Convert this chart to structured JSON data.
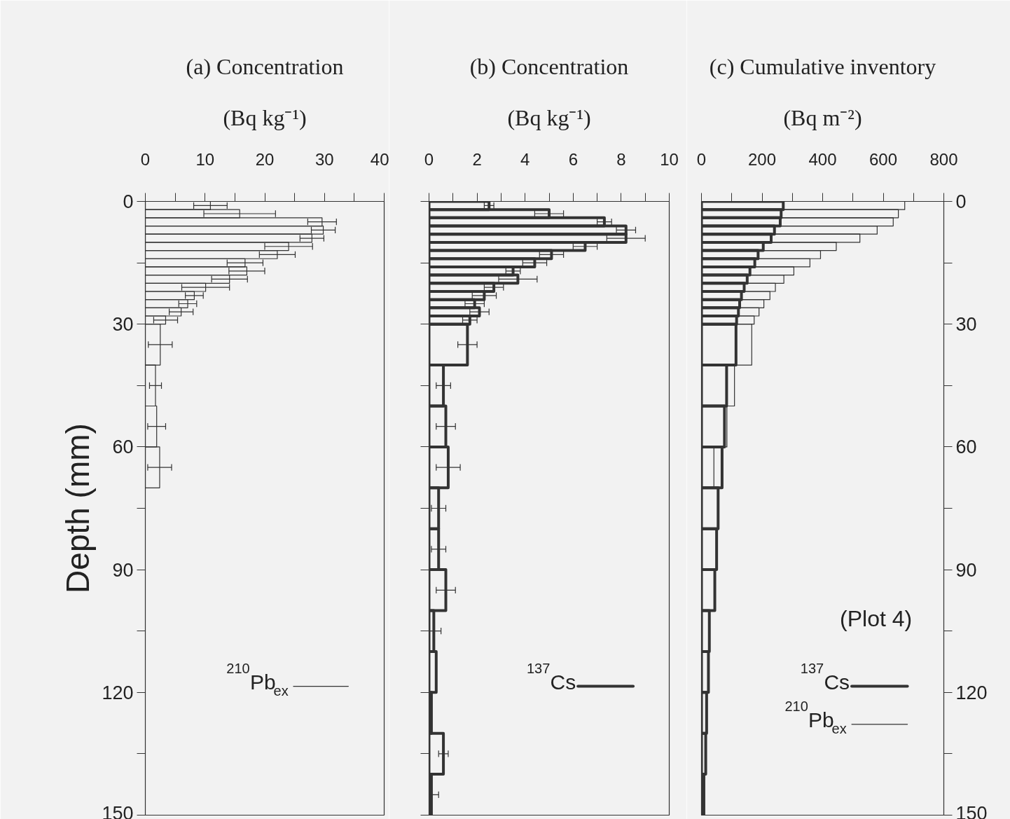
{
  "chart_data": [
    {
      "type": "histogram",
      "orientation": "horizontal",
      "title": "(a) Concentration",
      "subtitle": "(Bq kg⁻¹)",
      "ylabel": "Depth (mm)",
      "bins": [
        0,
        2,
        4,
        6,
        8,
        10,
        12,
        14,
        16,
        18,
        20,
        22,
        24,
        26,
        28,
        30,
        40,
        50,
        60,
        70
      ],
      "series": [
        {
          "name": "$^{210}$Pb$_{ex}$",
          "color": "#333333",
          "values": [
            10.9,
            15.8,
            29.6,
            29.8,
            27.9,
            24.0,
            22.1,
            16.7,
            17.0,
            14.1,
            10.1,
            8.2,
            7.1,
            6.0,
            3.4,
            2.5,
            1.7,
            1.9,
            2.4
          ],
          "errors": [
            2.8,
            6,
            2.4,
            2,
            2,
            4,
            3,
            3,
            3,
            3,
            4,
            1.5,
            1.5,
            2,
            2,
            2,
            1,
            1.5,
            2
          ]
        }
      ],
      "xlim": [
        0,
        40
      ],
      "xticks": [
        0,
        {
          "value": 5,
          "label": null
        },
        10,
        {
          "value": 15,
          "label": null
        },
        20,
        {
          "value": 25,
          "label": null
        },
        30,
        {
          "value": 35,
          "label": null
        },
        40
      ],
      "ylim": [
        150,
        0
      ],
      "yticks": [
        0,
        {
          "value": 15,
          "label": null
        },
        30,
        {
          "value": 45,
          "label": null
        },
        60,
        {
          "value": 75,
          "label": null
        },
        90,
        {
          "value": 105,
          "label": null
        },
        120,
        {
          "value": 135,
          "label": null
        },
        150
      ],
      "grid": false,
      "legend": "bottom right"
    },
    {
      "type": "histogram",
      "orientation": "horizontal",
      "title": "(b) Concentration",
      "subtitle": "(Bq kg⁻¹)",
      "bins": [
        0,
        2,
        4,
        6,
        8,
        10,
        12,
        14,
        16,
        18,
        20,
        22,
        24,
        26,
        28,
        30,
        40,
        50,
        60,
        70,
        80,
        90,
        100,
        110,
        120,
        130,
        140,
        150
      ],
      "series": [
        {
          "name": "$^{137}$Cs",
          "color": "#333333",
          "values": [
            2.5,
            5.0,
            7.3,
            8.2,
            8.2,
            6.5,
            5.1,
            4.4,
            3.5,
            3.7,
            2.7,
            2.3,
            1.9,
            2.1,
            1.7,
            1.6,
            0.6,
            0.7,
            0.8,
            0.4,
            0.4,
            0.7,
            0.2,
            0.3,
            0.1,
            0.6,
            0.1
          ],
          "errors": [
            0.2,
            0.6,
            0.3,
            0.4,
            0.8,
            0.5,
            0.5,
            0.5,
            0.3,
            0.8,
            0.4,
            0.5,
            0.4,
            0.4,
            0.3,
            0.4,
            0.3,
            0.4,
            0.5,
            0.3,
            0.3,
            0.4,
            0.3,
            null,
            null,
            0.2,
            0.3
          ]
        }
      ],
      "xlim": [
        0,
        10
      ],
      "xticks": [
        0,
        {
          "value": 1,
          "label": null
        },
        2,
        {
          "value": 3,
          "label": null
        },
        4,
        {
          "value": 5,
          "label": null
        },
        6,
        {
          "value": 7,
          "label": null
        },
        8,
        {
          "value": 9,
          "label": null
        },
        10
      ],
      "ylim": [
        150,
        0
      ],
      "yticks": [
        0,
        {
          "value": 15,
          "label": null
        },
        30,
        {
          "value": 45,
          "label": null
        },
        60,
        {
          "value": 75,
          "label": null
        },
        90,
        {
          "value": 105,
          "label": null
        },
        120,
        {
          "value": 135,
          "label": null
        },
        150
      ],
      "tick_labels": "x",
      "grid": false,
      "legend": "bottom right"
    },
    {
      "type": "histogram",
      "orientation": "horizontal",
      "title": "(c) Cumulative inventory",
      "subtitle": "(Bq m⁻²)",
      "bins": [
        0,
        2,
        4,
        6,
        8,
        10,
        12,
        14,
        16,
        18,
        20,
        22,
        24,
        26,
        28,
        30,
        40,
        50,
        60,
        70,
        80,
        90,
        100,
        110,
        120,
        130,
        140,
        150
      ],
      "series": [
        {
          "name": "$^{137}$Cs",
          "color": "#333333",
          "values": [
            270,
            263,
            260,
            241,
            230,
            204,
            187,
            176,
            160,
            151,
            141,
            132,
            126,
            122,
            116,
            114,
            83,
            76,
            68,
            55,
            50,
            44,
            26,
            23,
            17,
            14,
            8
          ]
        },
        {
          "name": "$^{210}$Pb$_{ex}$",
          "color": "#333333",
          "values": [
            671,
            650,
            633,
            580,
            523,
            445,
            393,
            358,
            305,
            272,
            244,
            226,
            206,
            190,
            174,
            166,
            109,
            84,
            41,
            null,
            null,
            null,
            null,
            null,
            null,
            null,
            null
          ]
        }
      ],
      "xlim": [
        0,
        800
      ],
      "xticks": [
        0,
        {
          "value": 100,
          "label": null
        },
        200,
        {
          "value": 300,
          "label": null
        },
        400,
        {
          "value": 500,
          "label": null
        },
        600,
        {
          "value": 700,
          "label": null
        },
        800
      ],
      "ylim": [
        150,
        0
      ],
      "yticks": [
        0,
        {
          "value": 15,
          "label": null
        },
        30,
        {
          "value": 45,
          "label": null
        },
        60,
        {
          "value": 75,
          "label": null
        },
        90,
        {
          "value": 105,
          "label": null
        },
        120,
        {
          "value": 135,
          "label": null
        },
        150
      ],
      "annotations": [
        "(Plot 4)"
      ],
      "grid": false,
      "legend": "bottom right"
    }
  ]
}
